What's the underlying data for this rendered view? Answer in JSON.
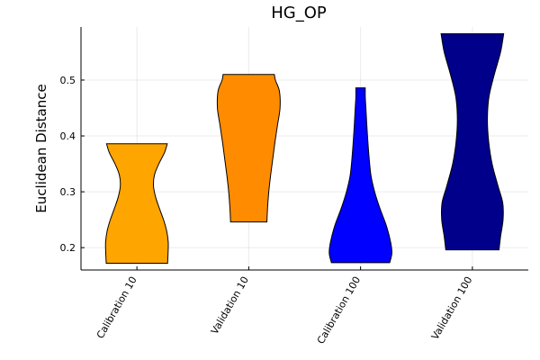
{
  "chart_data": {
    "type": "violin",
    "title": "HG_OP",
    "xlabel": "",
    "ylabel": "Euclidean Distance",
    "ylim": [
      0.16,
      0.595
    ],
    "yticks": [
      0.2,
      0.3,
      0.4,
      0.5
    ],
    "ytick_labels": [
      "0.2",
      "0.3",
      "0.4",
      "0.5"
    ],
    "grid": true,
    "categories": [
      "Calibration 10",
      "Validation 10",
      "Calibration 100",
      "Validation 100"
    ],
    "colors": [
      "#FFA500",
      "#FF8C00",
      "#0000FF",
      "#00008B"
    ],
    "series": [
      {
        "min": 0.172,
        "max": 0.386,
        "profile": [
          [
            0.172,
            0.98
          ],
          [
            0.19,
            0.995
          ],
          [
            0.21,
            1.0
          ],
          [
            0.23,
            0.95
          ],
          [
            0.25,
            0.85
          ],
          [
            0.27,
            0.72
          ],
          [
            0.29,
            0.6
          ],
          [
            0.31,
            0.53
          ],
          [
            0.33,
            0.56
          ],
          [
            0.35,
            0.7
          ],
          [
            0.37,
            0.88
          ],
          [
            0.386,
            0.97
          ]
        ]
      },
      {
        "min": 0.246,
        "max": 0.51,
        "profile": [
          [
            0.246,
            0.58
          ],
          [
            0.27,
            0.6
          ],
          [
            0.3,
            0.64
          ],
          [
            0.33,
            0.7
          ],
          [
            0.36,
            0.77
          ],
          [
            0.39,
            0.84
          ],
          [
            0.42,
            0.92
          ],
          [
            0.45,
            1.0
          ],
          [
            0.48,
            0.98
          ],
          [
            0.5,
            0.85
          ],
          [
            0.51,
            0.82
          ]
        ]
      },
      {
        "min": 0.173,
        "max": 0.486,
        "profile": [
          [
            0.173,
            0.93
          ],
          [
            0.19,
            1.0
          ],
          [
            0.21,
            0.96
          ],
          [
            0.24,
            0.82
          ],
          [
            0.27,
            0.62
          ],
          [
            0.3,
            0.45
          ],
          [
            0.33,
            0.33
          ],
          [
            0.37,
            0.26
          ],
          [
            0.41,
            0.21
          ],
          [
            0.45,
            0.17
          ],
          [
            0.47,
            0.15
          ],
          [
            0.486,
            0.15
          ]
        ]
      },
      {
        "min": 0.196,
        "max": 0.583,
        "profile": [
          [
            0.196,
            0.85
          ],
          [
            0.22,
            0.9
          ],
          [
            0.25,
            0.98
          ],
          [
            0.28,
            0.97
          ],
          [
            0.31,
            0.82
          ],
          [
            0.35,
            0.63
          ],
          [
            0.39,
            0.52
          ],
          [
            0.43,
            0.48
          ],
          [
            0.47,
            0.53
          ],
          [
            0.51,
            0.7
          ],
          [
            0.55,
            0.9
          ],
          [
            0.583,
            1.0
          ]
        ]
      }
    ]
  }
}
